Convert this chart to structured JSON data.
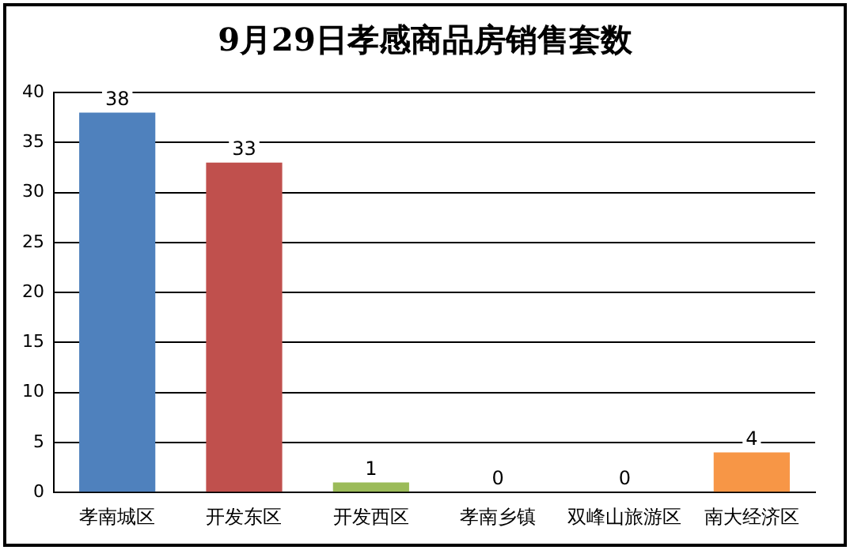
{
  "chart_data": {
    "type": "bar",
    "title": "9月29日孝感商品房销售套数",
    "categories": [
      "孝南城区",
      "开发东区",
      "开发西区",
      "孝南乡镇",
      "双峰山旅游区",
      "南大经济区"
    ],
    "values": [
      38,
      33,
      1,
      0,
      0,
      4
    ],
    "colors": [
      "#4f81bd",
      "#c0504d",
      "#9bbb59",
      "#8064a2",
      "#4bacc6",
      "#f79646"
    ],
    "ylim": [
      0,
      40
    ],
    "yticks": [
      0,
      5,
      10,
      15,
      20,
      25,
      30,
      35,
      40
    ],
    "grid": "y",
    "legend": false,
    "data_labels": true
  }
}
